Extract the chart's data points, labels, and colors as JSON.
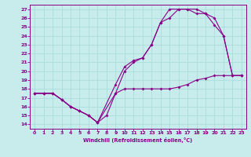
{
  "xlabel": "Windchill (Refroidissement éolien,°C)",
  "bg_color": "#c8ecec",
  "grid_color": "#aadddd",
  "line_color": "#880088",
  "xlim": [
    -0.5,
    23.5
  ],
  "ylim": [
    13.5,
    27.5
  ],
  "xticks": [
    0,
    1,
    2,
    3,
    4,
    5,
    6,
    7,
    8,
    9,
    10,
    11,
    12,
    13,
    14,
    15,
    16,
    17,
    18,
    19,
    20,
    21,
    22,
    23
  ],
  "yticks": [
    14,
    15,
    16,
    17,
    18,
    19,
    20,
    21,
    22,
    23,
    24,
    25,
    26,
    27
  ],
  "curve1_x": [
    0,
    1,
    2,
    3,
    4,
    5,
    6,
    7,
    8,
    9,
    10,
    11,
    12,
    13,
    14,
    15,
    16,
    17,
    18,
    19,
    20,
    21,
    22,
    23
  ],
  "curve1_y": [
    17.5,
    17.5,
    17.5,
    16.8,
    16.0,
    15.5,
    15.0,
    14.2,
    15.0,
    17.5,
    18.0,
    18.0,
    18.0,
    18.0,
    18.0,
    18.0,
    18.2,
    18.5,
    19.0,
    19.2,
    19.5,
    19.5,
    19.5,
    19.5
  ],
  "curve2_x": [
    0,
    1,
    2,
    3,
    4,
    5,
    6,
    7,
    9,
    10,
    11,
    12,
    13,
    14,
    15,
    16,
    17,
    18,
    19,
    20,
    21,
    22,
    23
  ],
  "curve2_y": [
    17.5,
    17.5,
    17.5,
    16.8,
    16.0,
    15.5,
    15.0,
    14.2,
    18.5,
    20.5,
    21.2,
    21.5,
    23.0,
    25.5,
    26.0,
    27.0,
    27.0,
    27.0,
    26.5,
    25.2,
    24.0,
    19.5,
    19.5
  ],
  "curve3_x": [
    0,
    1,
    2,
    3,
    4,
    5,
    6,
    7,
    9,
    10,
    11,
    12,
    13,
    14,
    15,
    16,
    17,
    18,
    19,
    20,
    21,
    22,
    23
  ],
  "curve3_y": [
    17.5,
    17.5,
    17.5,
    16.8,
    16.0,
    15.5,
    15.0,
    14.2,
    17.5,
    20.0,
    21.0,
    21.5,
    23.0,
    25.5,
    27.0,
    27.0,
    27.0,
    26.5,
    26.5,
    26.0,
    24.0,
    19.5,
    19.5
  ]
}
